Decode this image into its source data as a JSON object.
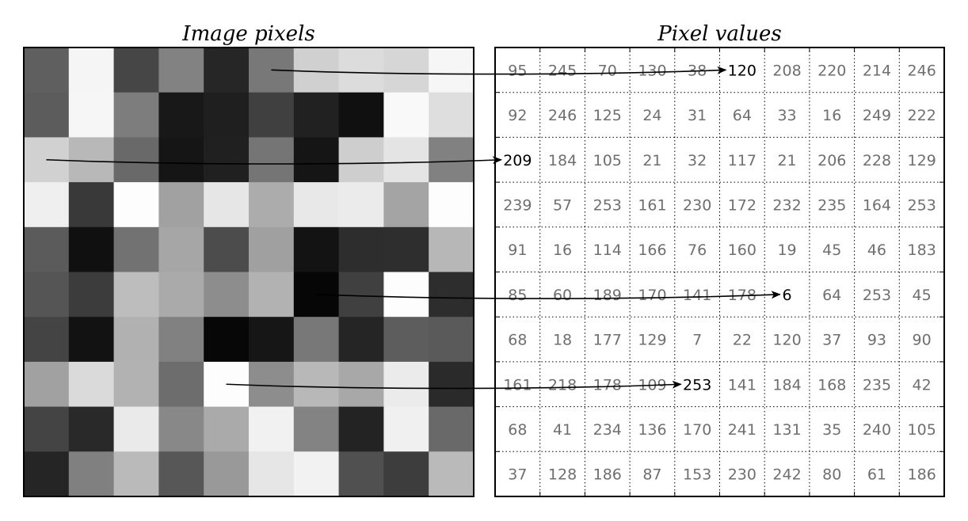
{
  "titles": {
    "left": "Image pixels",
    "right": "Pixel values"
  },
  "grid": [
    [
      95,
      245,
      70,
      130,
      38,
      120,
      208,
      220,
      214,
      246
    ],
    [
      92,
      246,
      125,
      24,
      31,
      64,
      33,
      16,
      249,
      222
    ],
    [
      209,
      184,
      105,
      21,
      32,
      117,
      21,
      206,
      228,
      129
    ],
    [
      239,
      57,
      253,
      161,
      230,
      172,
      232,
      235,
      164,
      253
    ],
    [
      91,
      16,
      114,
      166,
      76,
      160,
      19,
      45,
      46,
      183
    ],
    [
      85,
      60,
      189,
      170,
      141,
      178,
      6,
      64,
      253,
      45
    ],
    [
      68,
      18,
      177,
      129,
      7,
      22,
      120,
      37,
      93,
      90
    ],
    [
      161,
      218,
      178,
      109,
      253,
      141,
      184,
      168,
      235,
      42
    ],
    [
      68,
      41,
      234,
      136,
      170,
      241,
      131,
      35,
      240,
      105
    ],
    [
      37,
      128,
      186,
      87,
      153,
      230,
      242,
      80,
      61,
      186
    ]
  ],
  "arrows": [
    {
      "row": 0,
      "col": 5
    },
    {
      "row": 2,
      "col": 0
    },
    {
      "row": 5,
      "col": 6
    },
    {
      "row": 7,
      "col": 4
    }
  ]
}
